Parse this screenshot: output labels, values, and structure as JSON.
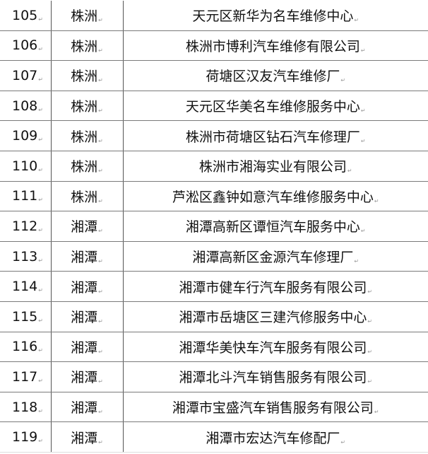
{
  "table": {
    "rows": [
      {
        "no": "105",
        "city": "株洲",
        "name": "天元区新华为名车维修中心"
      },
      {
        "no": "106",
        "city": "株洲",
        "name": "株洲市博利汽车维修有限公司"
      },
      {
        "no": "107",
        "city": "株洲",
        "name": "荷塘区汉友汽车维修厂"
      },
      {
        "no": "108",
        "city": "株洲",
        "name": "天元区华美名车维修服务中心"
      },
      {
        "no": "109",
        "city": "株洲",
        "name": "株洲市荷塘区钻石汽车修理厂"
      },
      {
        "no": "110",
        "city": "株洲",
        "name": "株洲市湘海实业有限公司"
      },
      {
        "no": "111",
        "city": "株洲",
        "name": "芦淞区鑫钟如意汽车维修服务中心"
      },
      {
        "no": "112",
        "city": "湘潭",
        "name": "湘潭高新区谭恒汽车服务中心"
      },
      {
        "no": "113",
        "city": "湘潭",
        "name": "湘潭高新区金源汽车修理厂"
      },
      {
        "no": "114",
        "city": "湘潭",
        "name": "湘潭市健车行汽车服务有限公司"
      },
      {
        "no": "115",
        "city": "湘潭",
        "name": "湘潭市岳塘区三建汽修服务中心"
      },
      {
        "no": "116",
        "city": "湘潭",
        "name": "湘潭华美快车汽车服务有限公司"
      },
      {
        "no": "117",
        "city": "湘潭",
        "name": "湘潭北斗汽车销售服务有限公司"
      },
      {
        "no": "118",
        "city": "湘潭",
        "name": "湘潭市宝盛汽车销售服务有限公司"
      },
      {
        "no": "119",
        "city": "湘潭",
        "name": "湘潭市宏达汽车修配厂"
      }
    ]
  }
}
